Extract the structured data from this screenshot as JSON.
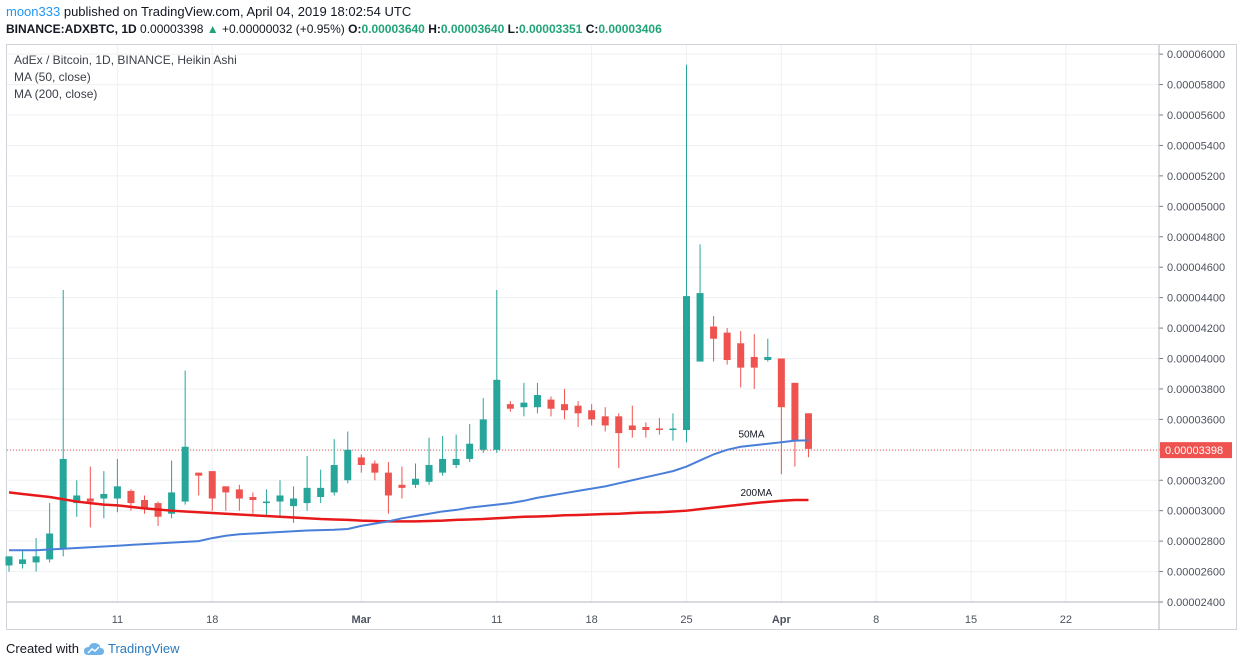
{
  "header": {
    "user": "moon333",
    "published": "published on TradingView.com, April 04, 2019 18:02:54 UTC",
    "symbol": "BINANCE:ADXBTC, 1D",
    "price": "0.00003398",
    "change": "+0.00000032 (+0.95%)",
    "o_label": "O:",
    "o": "0.00003640",
    "h_label": "H:",
    "h": "0.00003640",
    "l_label": "L:",
    "l": "0.00003351",
    "c_label": "C:",
    "c": "0.00003406"
  },
  "legend": {
    "title": "AdEx / Bitcoin, 1D, BINANCE, Heikin Ashi",
    "ma50": "MA (50, close)",
    "ma200": "MA (200, close)"
  },
  "footer": {
    "created": "Created with",
    "brand": "TradingView"
  },
  "colors": {
    "up": "#26a69a",
    "down": "#ef5350",
    "ma50": "#4a7fd9",
    "ma200": "#e8191a",
    "grid": "#eef0f3"
  },
  "chart_data": {
    "type": "candlestick",
    "style": "Heikin Ashi",
    "symbol": "ADXBTC",
    "timeframe": "1D",
    "y_ticks": [
      "0.00002400",
      "0.00002600",
      "0.00002800",
      "0.00003000",
      "0.00003200",
      "0.00003400",
      "0.00003600",
      "0.00003800",
      "0.00004000",
      "0.00004200",
      "0.00004400",
      "0.00004600",
      "0.00004800",
      "0.00005000",
      "0.00005200",
      "0.00005400",
      "0.00005600",
      "0.00005800",
      "0.00006000"
    ],
    "ylim": [
      2.4e-05,
      6.06e-05
    ],
    "x_ticks": [
      {
        "label": "11",
        "date": "2019-02-11"
      },
      {
        "label": "18",
        "date": "2019-02-18"
      },
      {
        "label": "Mar",
        "date": "2019-03-01"
      },
      {
        "label": "11",
        "date": "2019-03-11"
      },
      {
        "label": "18",
        "date": "2019-03-18"
      },
      {
        "label": "25",
        "date": "2019-03-25"
      },
      {
        "label": "Apr",
        "date": "2019-04-01"
      },
      {
        "label": "8",
        "date": "2019-04-08"
      },
      {
        "label": "15",
        "date": "2019-04-15"
      },
      {
        "label": "22",
        "date": "2019-04-22"
      }
    ],
    "last_price_label": "0.00003398",
    "ma_labels": {
      "ma50": "50MA",
      "ma200": "200MA"
    },
    "candles": [
      {
        "date": "2019-02-03",
        "o": 2.64e-05,
        "h": 2.69e-05,
        "l": 2.6e-05,
        "c": 2.7e-05
      },
      {
        "date": "2019-02-04",
        "o": 2.65e-05,
        "h": 2.74e-05,
        "l": 2.62e-05,
        "c": 2.68e-05
      },
      {
        "date": "2019-02-05",
        "o": 2.66e-05,
        "h": 2.82e-05,
        "l": 2.6e-05,
        "c": 2.7e-05
      },
      {
        "date": "2019-02-06",
        "o": 2.68e-05,
        "h": 3.05e-05,
        "l": 2.66e-05,
        "c": 2.85e-05
      },
      {
        "date": "2019-02-07",
        "o": 2.75e-05,
        "h": 4.45e-05,
        "l": 2.7e-05,
        "c": 3.34e-05
      },
      {
        "date": "2019-02-08",
        "o": 3.05e-05,
        "h": 3.2e-05,
        "l": 2.96e-05,
        "c": 3.1e-05
      },
      {
        "date": "2019-02-09",
        "o": 3.08e-05,
        "h": 3.29e-05,
        "l": 2.89e-05,
        "c": 3.06e-05
      },
      {
        "date": "2019-02-10",
        "o": 3.08e-05,
        "h": 3.26e-05,
        "l": 2.95e-05,
        "c": 3.11e-05
      },
      {
        "date": "2019-02-11",
        "o": 3.08e-05,
        "h": 3.34e-05,
        "l": 2.99e-05,
        "c": 3.16e-05
      },
      {
        "date": "2019-02-12",
        "o": 3.13e-05,
        "h": 3.14e-05,
        "l": 3e-05,
        "c": 3.05e-05
      },
      {
        "date": "2019-02-13",
        "o": 3.07e-05,
        "h": 3.1e-05,
        "l": 2.98e-05,
        "c": 3.01e-05
      },
      {
        "date": "2019-02-14",
        "o": 3.05e-05,
        "h": 3.06e-05,
        "l": 2.9e-05,
        "c": 2.96e-05
      },
      {
        "date": "2019-02-15",
        "o": 2.98e-05,
        "h": 3.33e-05,
        "l": 2.95e-05,
        "c": 3.12e-05
      },
      {
        "date": "2019-02-16",
        "o": 3.06e-05,
        "h": 3.92e-05,
        "l": 3.04e-05,
        "c": 3.42e-05
      },
      {
        "date": "2019-02-17",
        "o": 3.25e-05,
        "h": 3.25e-05,
        "l": 3.1e-05,
        "c": 3.23e-05
      },
      {
        "date": "2019-02-18",
        "o": 3.26e-05,
        "h": 3.26e-05,
        "l": 3e-05,
        "c": 3.08e-05
      },
      {
        "date": "2019-02-19",
        "o": 3.16e-05,
        "h": 3.16e-05,
        "l": 3e-05,
        "c": 3.12e-05
      },
      {
        "date": "2019-02-20",
        "o": 3.14e-05,
        "h": 3.17e-05,
        "l": 3e-05,
        "c": 3.08e-05
      },
      {
        "date": "2019-02-21",
        "o": 3.09e-05,
        "h": 3.12e-05,
        "l": 2.98e-05,
        "c": 3.07e-05
      },
      {
        "date": "2019-02-22",
        "o": 3.05e-05,
        "h": 3.14e-05,
        "l": 2.96e-05,
        "c": 3.06e-05
      },
      {
        "date": "2019-02-23",
        "o": 3.06e-05,
        "h": 3.2e-05,
        "l": 2.96e-05,
        "c": 3.1e-05
      },
      {
        "date": "2019-02-24",
        "o": 3.03e-05,
        "h": 3.16e-05,
        "l": 2.92e-05,
        "c": 3.08e-05
      },
      {
        "date": "2019-02-25",
        "o": 3.05e-05,
        "h": 3.36e-05,
        "l": 3e-05,
        "c": 3.15e-05
      },
      {
        "date": "2019-02-26",
        "o": 3.09e-05,
        "h": 3.27e-05,
        "l": 3.05e-05,
        "c": 3.15e-05
      },
      {
        "date": "2019-02-27",
        "o": 3.12e-05,
        "h": 3.47e-05,
        "l": 3.1e-05,
        "c": 3.3e-05
      },
      {
        "date": "2019-02-28",
        "o": 3.2e-05,
        "h": 3.52e-05,
        "l": 3.18e-05,
        "c": 3.4e-05
      },
      {
        "date": "2019-03-01",
        "o": 3.35e-05,
        "h": 3.37e-05,
        "l": 3.25e-05,
        "c": 3.3e-05
      },
      {
        "date": "2019-03-02",
        "o": 3.31e-05,
        "h": 3.33e-05,
        "l": 3.2e-05,
        "c": 3.25e-05
      },
      {
        "date": "2019-03-03",
        "o": 3.25e-05,
        "h": 3.32e-05,
        "l": 2.98e-05,
        "c": 3.1e-05
      },
      {
        "date": "2019-03-04",
        "o": 3.17e-05,
        "h": 3.29e-05,
        "l": 3.08e-05,
        "c": 3.15e-05
      },
      {
        "date": "2019-03-05",
        "o": 3.17e-05,
        "h": 3.31e-05,
        "l": 3.15e-05,
        "c": 3.21e-05
      },
      {
        "date": "2019-03-06",
        "o": 3.19e-05,
        "h": 3.48e-05,
        "l": 3.17e-05,
        "c": 3.3e-05
      },
      {
        "date": "2019-03-07",
        "o": 3.25e-05,
        "h": 3.49e-05,
        "l": 3.23e-05,
        "c": 3.34e-05
      },
      {
        "date": "2019-03-08",
        "o": 3.3e-05,
        "h": 3.5e-05,
        "l": 3.28e-05,
        "c": 3.34e-05
      },
      {
        "date": "2019-03-09",
        "o": 3.34e-05,
        "h": 3.57e-05,
        "l": 3.32e-05,
        "c": 3.44e-05
      },
      {
        "date": "2019-03-10",
        "o": 3.4e-05,
        "h": 3.74e-05,
        "l": 3.38e-05,
        "c": 3.6e-05
      },
      {
        "date": "2019-03-11",
        "o": 3.4e-05,
        "h": 4.45e-05,
        "l": 3.38e-05,
        "c": 3.86e-05
      },
      {
        "date": "2019-03-12",
        "o": 3.7e-05,
        "h": 3.72e-05,
        "l": 3.65e-05,
        "c": 3.67e-05
      },
      {
        "date": "2019-03-13",
        "o": 3.68e-05,
        "h": 3.84e-05,
        "l": 3.62e-05,
        "c": 3.71e-05
      },
      {
        "date": "2019-03-14",
        "o": 3.68e-05,
        "h": 3.84e-05,
        "l": 3.64e-05,
        "c": 3.76e-05
      },
      {
        "date": "2019-03-15",
        "o": 3.73e-05,
        "h": 3.75e-05,
        "l": 3.62e-05,
        "c": 3.67e-05
      },
      {
        "date": "2019-03-16",
        "o": 3.7e-05,
        "h": 3.8e-05,
        "l": 3.6e-05,
        "c": 3.66e-05
      },
      {
        "date": "2019-03-17",
        "o": 3.69e-05,
        "h": 3.72e-05,
        "l": 3.55e-05,
        "c": 3.64e-05
      },
      {
        "date": "2019-03-18",
        "o": 3.66e-05,
        "h": 3.7e-05,
        "l": 3.56e-05,
        "c": 3.6e-05
      },
      {
        "date": "2019-03-19",
        "o": 3.62e-05,
        "h": 3.68e-05,
        "l": 3.52e-05,
        "c": 3.56e-05
      },
      {
        "date": "2019-03-20",
        "o": 3.62e-05,
        "h": 3.64e-05,
        "l": 3.28e-05,
        "c": 3.51e-05
      },
      {
        "date": "2019-03-21",
        "o": 3.56e-05,
        "h": 3.69e-05,
        "l": 3.48e-05,
        "c": 3.53e-05
      },
      {
        "date": "2019-03-22",
        "o": 3.55e-05,
        "h": 3.58e-05,
        "l": 3.48e-05,
        "c": 3.53e-05
      },
      {
        "date": "2019-03-23",
        "o": 3.54e-05,
        "h": 3.61e-05,
        "l": 3.5e-05,
        "c": 3.53e-05
      },
      {
        "date": "2019-03-24",
        "o": 3.53e-05,
        "h": 3.64e-05,
        "l": 3.46e-05,
        "c": 3.54e-05
      },
      {
        "date": "2019-03-25",
        "o": 3.53e-05,
        "h": 5.93e-05,
        "l": 3.45e-05,
        "c": 4.41e-05
      },
      {
        "date": "2019-03-26",
        "o": 3.98e-05,
        "h": 4.75e-05,
        "l": 3.98e-05,
        "c": 4.43e-05
      },
      {
        "date": "2019-03-27",
        "o": 4.21e-05,
        "h": 4.28e-05,
        "l": 3.98e-05,
        "c": 4.13e-05
      },
      {
        "date": "2019-03-28",
        "o": 4.17e-05,
        "h": 4.2e-05,
        "l": 3.96e-05,
        "c": 3.99e-05
      },
      {
        "date": "2019-03-29",
        "o": 4.1e-05,
        "h": 4.18e-05,
        "l": 3.81e-05,
        "c": 3.94e-05
      },
      {
        "date": "2019-03-30",
        "o": 4.01e-05,
        "h": 4.16e-05,
        "l": 3.8e-05,
        "c": 3.94e-05
      },
      {
        "date": "2019-03-31",
        "o": 3.99e-05,
        "h": 4.13e-05,
        "l": 3.98e-05,
        "c": 4.01e-05
      },
      {
        "date": "2019-04-01",
        "o": 4e-05,
        "h": 4e-05,
        "l": 3.24e-05,
        "c": 3.68e-05
      },
      {
        "date": "2019-04-02",
        "o": 3.84e-05,
        "h": 3.84e-05,
        "l": 3.29e-05,
        "c": 3.46e-05
      },
      {
        "date": "2019-04-03",
        "o": 3.64e-05,
        "h": 3.64e-05,
        "l": 3.351e-05,
        "c": 3.406e-05
      }
    ],
    "ma50": [
      2.74e-05,
      2.74e-05,
      2.74e-05,
      2.745e-05,
      2.75e-05,
      2.755e-05,
      2.76e-05,
      2.765e-05,
      2.77e-05,
      2.775e-05,
      2.78e-05,
      2.785e-05,
      2.79e-05,
      2.795e-05,
      2.8e-05,
      2.82e-05,
      2.835e-05,
      2.845e-05,
      2.85e-05,
      2.855e-05,
      2.86e-05,
      2.865e-05,
      2.87e-05,
      2.872e-05,
      2.875e-05,
      2.88e-05,
      2.9e-05,
      2.915e-05,
      2.93e-05,
      2.95e-05,
      2.965e-05,
      2.98e-05,
      2.995e-05,
      3.005e-05,
      3.02e-05,
      3.03e-05,
      3.04e-05,
      3.05e-05,
      3.065e-05,
      3.085e-05,
      3.1e-05,
      3.115e-05,
      3.13e-05,
      3.145e-05,
      3.16e-05,
      3.18e-05,
      3.2e-05,
      3.22e-05,
      3.24e-05,
      3.26e-05,
      3.29e-05,
      3.33e-05,
      3.37e-05,
      3.4e-05,
      3.42e-05,
      3.43e-05,
      3.44e-05,
      3.45e-05,
      3.46e-05,
      3.462e-05
    ],
    "ma200": [
      3.12e-05,
      3.11e-05,
      3.1e-05,
      3.09e-05,
      3.075e-05,
      3.06e-05,
      3.05e-05,
      3.04e-05,
      3.035e-05,
      3.025e-05,
      3.015e-05,
      3.008e-05,
      3e-05,
      2.995e-05,
      2.99e-05,
      2.985e-05,
      2.98e-05,
      2.975e-05,
      2.97e-05,
      2.965e-05,
      2.96e-05,
      2.955e-05,
      2.95e-05,
      2.945e-05,
      2.942e-05,
      2.94e-05,
      2.935e-05,
      2.932e-05,
      2.93e-05,
      2.93e-05,
      2.93e-05,
      2.932e-05,
      2.935e-05,
      2.94e-05,
      2.942e-05,
      2.945e-05,
      2.95e-05,
      2.955e-05,
      2.96e-05,
      2.962e-05,
      2.965e-05,
      2.97e-05,
      2.972e-05,
      2.975e-05,
      2.978e-05,
      2.98e-05,
      2.985e-05,
      2.988e-05,
      2.99e-05,
      2.995e-05,
      3e-05,
      3.01e-05,
      3.02e-05,
      3.03e-05,
      3.04e-05,
      3.05e-05,
      3.058e-05,
      3.065e-05,
      3.07e-05,
      3.07e-05
    ]
  }
}
